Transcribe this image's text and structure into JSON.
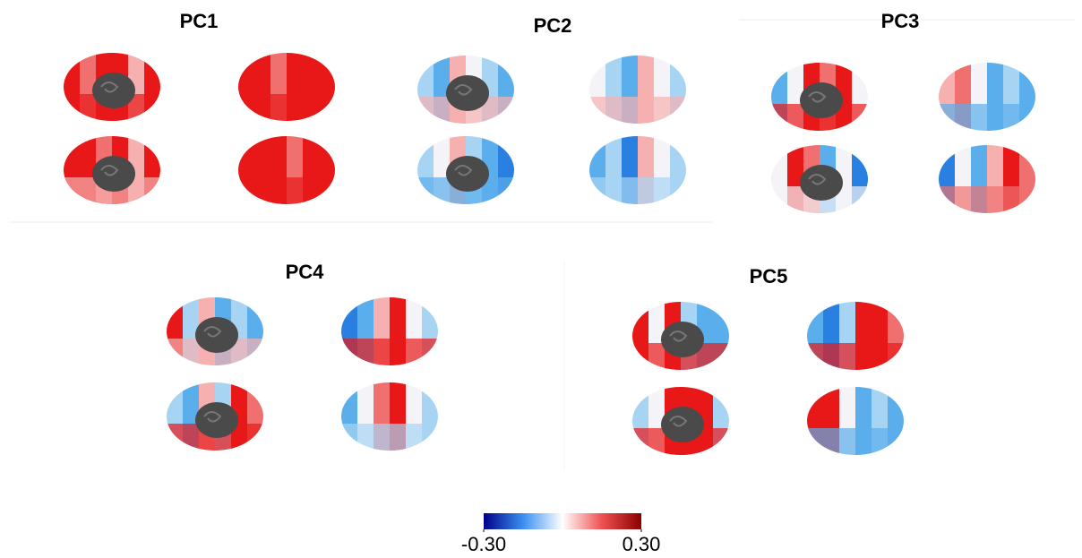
{
  "panels": [
    {
      "title": "PC1"
    },
    {
      "title": "PC2"
    },
    {
      "title": "PC3"
    },
    {
      "title": "PC4"
    },
    {
      "title": "PC5"
    }
  ],
  "colorbar": {
    "ticks": [
      {
        "value": -0.3,
        "label": "-0.30"
      },
      {
        "value": 0.3,
        "label": "0.30"
      }
    ]
  }
}
